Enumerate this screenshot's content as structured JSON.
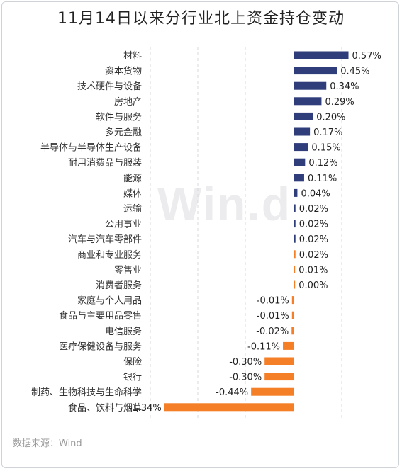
{
  "title": "11月14日以来分行业北上资金持仓变动",
  "source": "数据来源：Wind",
  "watermark": "Win.d",
  "colors": {
    "positive": "#2f3e7a",
    "negative": "#f47f26",
    "grid": "#d6d9de",
    "label": "#333333"
  },
  "chart_data": {
    "type": "bar",
    "orientation": "horizontal",
    "title": "11月14日以来分行业北上资金持仓变动",
    "xlabel": "",
    "ylabel": "",
    "unit": "%",
    "grid": true,
    "categories": [
      "材料",
      "资本货物",
      "技术硬件与设备",
      "房地产",
      "软件与服务",
      "多元金融",
      "半导体与半导体生产设备",
      "耐用消费品与服装",
      "能源",
      "媒体",
      "运输",
      "公用事业",
      "汽车与汽车零部件",
      "商业和专业服务",
      "零售业",
      "消费者服务",
      "家庭与个人用品",
      "食品与主要用品零售",
      "电信服务",
      "医疗保健设备与服务",
      "保险",
      "银行",
      "制药、生物科技与生命科学",
      "食品、饮料与烟草"
    ],
    "values": [
      0.57,
      0.45,
      0.34,
      0.29,
      0.2,
      0.17,
      0.15,
      0.12,
      0.11,
      0.04,
      0.02,
      0.02,
      0.02,
      0.02,
      0.01,
      0.0,
      -0.01,
      -0.01,
      -0.02,
      -0.11,
      -0.3,
      -0.3,
      -0.44,
      -1.34
    ],
    "value_labels": [
      "0.57%",
      "0.45%",
      "0.34%",
      "0.29%",
      "0.20%",
      "0.17%",
      "0.15%",
      "0.12%",
      "0.11%",
      "0.04%",
      "0.02%",
      "0.02%",
      "0.02%",
      "0.02%",
      "0.01%",
      "0.00%",
      "-0.01%",
      "-0.01%",
      "-0.02%",
      "-0.11%",
      "-0.30%",
      "-0.30%",
      "-0.44%",
      "-1.34%"
    ],
    "bar_color_group": [
      "positive",
      "positive",
      "positive",
      "positive",
      "positive",
      "positive",
      "positive",
      "positive",
      "positive",
      "positive",
      "positive",
      "positive",
      "positive",
      "negative",
      "negative",
      "negative",
      "negative",
      "negative",
      "negative",
      "negative",
      "negative",
      "negative",
      "negative",
      "negative"
    ],
    "xlim": [
      -1.5,
      0.5
    ]
  }
}
